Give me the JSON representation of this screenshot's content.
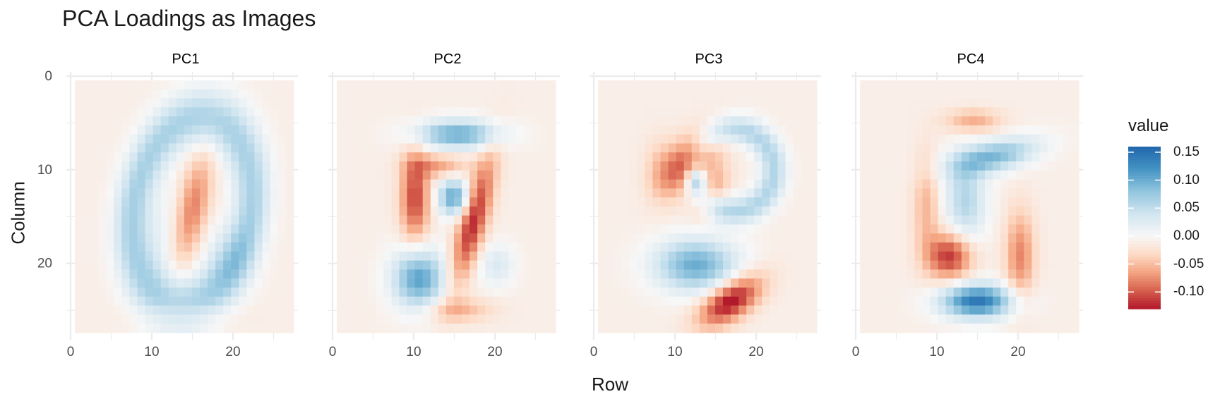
{
  "title": "PCA Loadings as Images",
  "chart_data": {
    "type": "heatmap",
    "title": "PCA Loadings as Images",
    "xlabel": "Row",
    "ylabel": "Column",
    "facets": [
      "PC1",
      "PC2",
      "PC3",
      "PC4"
    ],
    "grid_size": [
      28,
      28
    ],
    "xlim": [
      0,
      28
    ],
    "ylim": [
      0,
      28
    ],
    "y_reversed": true,
    "x_ticks": [
      0,
      10,
      20
    ],
    "y_ticks": [
      0,
      10,
      20
    ],
    "legend": {
      "title": "value",
      "position": "right",
      "ticks": [
        0.15,
        0.1,
        0.05,
        0.0,
        -0.05,
        -0.1
      ],
      "tick_labels": [
        "0.15",
        "0.10",
        "0.05",
        "0.00",
        "-0.05",
        "-0.10"
      ],
      "range": [
        -0.13,
        0.16
      ],
      "palette": [
        "#b2182b",
        "#d6604d",
        "#f4a582",
        "#fddbc7",
        "#f7f7f7",
        "#d1e5f0",
        "#92c5de",
        "#4393c3",
        "#2166ac"
      ]
    },
    "background_value": -0.01,
    "components": {
      "PC1": [
        {
          "shape": "ring",
          "cx": 15,
          "cy": 14.5,
          "rx": 7.5,
          "ry": 10.5,
          "width": 1.6,
          "angle": 0.25,
          "amp": 0.075
        },
        {
          "shape": "blob",
          "cx": 15,
          "cy": 14.5,
          "sx": 1.4,
          "sy": 4.5,
          "angle": 0.25,
          "amp": -0.075
        },
        {
          "shape": "blob",
          "cx": 19.5,
          "cy": 19.5,
          "sx": 2.2,
          "sy": 2.8,
          "angle": 0,
          "amp": 0.03
        },
        {
          "shape": "blob",
          "cx": 11.5,
          "cy": 17,
          "sx": 2.2,
          "sy": 4,
          "angle": 0,
          "amp": 0.02
        },
        {
          "shape": "blob",
          "cx": 14,
          "cy": 26,
          "sx": 4,
          "sy": 0.9,
          "angle": 0,
          "amp": -0.02
        }
      ],
      "PC2": [
        {
          "shape": "blob",
          "cx": 15.5,
          "cy": 6,
          "sx": 3.8,
          "sy": 1.1,
          "angle": 0,
          "amp": 0.11
        },
        {
          "shape": "blob",
          "cx": 15,
          "cy": 13,
          "sx": 1.4,
          "sy": 1.4,
          "angle": 0,
          "amp": 0.115
        },
        {
          "shape": "blob",
          "cx": 10.5,
          "cy": 22,
          "sx": 2.3,
          "sy": 2.3,
          "angle": 0,
          "amp": 0.12
        },
        {
          "shape": "blob",
          "cx": 20.5,
          "cy": 20.5,
          "sx": 1.6,
          "sy": 1.6,
          "angle": 0,
          "amp": 0.04
        },
        {
          "shape": "blob",
          "cx": 10,
          "cy": 13,
          "sx": 1.3,
          "sy": 3.5,
          "angle": 0,
          "amp": -0.1
        },
        {
          "shape": "blob",
          "cx": 17.5,
          "cy": 15.5,
          "sx": 1.2,
          "sy": 5,
          "angle": 0.3,
          "amp": -0.115
        },
        {
          "shape": "blob",
          "cx": 13,
          "cy": 9.5,
          "sx": 2.5,
          "sy": 0.9,
          "angle": 0,
          "amp": -0.055
        },
        {
          "shape": "blob",
          "cx": 15.5,
          "cy": 25.5,
          "sx": 3,
          "sy": 0.9,
          "angle": 0,
          "amp": -0.045
        }
      ],
      "PC3": [
        {
          "shape": "blob",
          "cx": 12,
          "cy": 9,
          "sx": 2.8,
          "sy": 1.7,
          "angle": -0.7,
          "amp": -0.12
        },
        {
          "shape": "blob",
          "cx": 14.5,
          "cy": 12.5,
          "sx": 1.2,
          "sy": 2,
          "angle": 0.6,
          "amp": -0.06
        },
        {
          "shape": "blob",
          "cx": 12.5,
          "cy": 11,
          "sx": 0.8,
          "sy": 0.8,
          "angle": 0,
          "amp": 0.06
        },
        {
          "shape": "ring",
          "cx": 17.5,
          "cy": 10,
          "rx": 5,
          "ry": 4.5,
          "width": 1.1,
          "angle": 0,
          "amp": 0.07
        },
        {
          "shape": "blob",
          "cx": 12.5,
          "cy": 20.5,
          "sx": 3.6,
          "sy": 2,
          "angle": 0,
          "amp": 0.11
        },
        {
          "shape": "blob",
          "cx": 17,
          "cy": 24.5,
          "sx": 3,
          "sy": 1.4,
          "angle": -0.5,
          "amp": -0.13
        },
        {
          "shape": "blob",
          "cx": 8,
          "cy": 10,
          "sx": 1.5,
          "sy": 2.5,
          "angle": 0,
          "amp": -0.03
        }
      ],
      "PC4": [
        {
          "shape": "blob",
          "cx": 15,
          "cy": 24.5,
          "sx": 3.2,
          "sy": 1.3,
          "angle": 0,
          "amp": 0.155
        },
        {
          "shape": "blob",
          "cx": 17,
          "cy": 8.5,
          "sx": 4,
          "sy": 1.2,
          "angle": -0.2,
          "amp": 0.1
        },
        {
          "shape": "blob",
          "cx": 13.5,
          "cy": 13.5,
          "sx": 1.8,
          "sy": 3.2,
          "angle": 0,
          "amp": 0.07
        },
        {
          "shape": "blob",
          "cx": 11.5,
          "cy": 19.5,
          "sx": 2,
          "sy": 1.8,
          "angle": 0,
          "amp": -0.11
        },
        {
          "shape": "blob",
          "cx": 20.5,
          "cy": 19.5,
          "sx": 1.3,
          "sy": 3.5,
          "angle": 0,
          "amp": -0.07
        },
        {
          "shape": "blob",
          "cx": 8.5,
          "cy": 14,
          "sx": 1.2,
          "sy": 4,
          "angle": 0,
          "amp": -0.045
        },
        {
          "shape": "blob",
          "cx": 14.5,
          "cy": 4.5,
          "sx": 2.5,
          "sy": 0.9,
          "angle": 0,
          "amp": -0.05
        }
      ]
    }
  }
}
